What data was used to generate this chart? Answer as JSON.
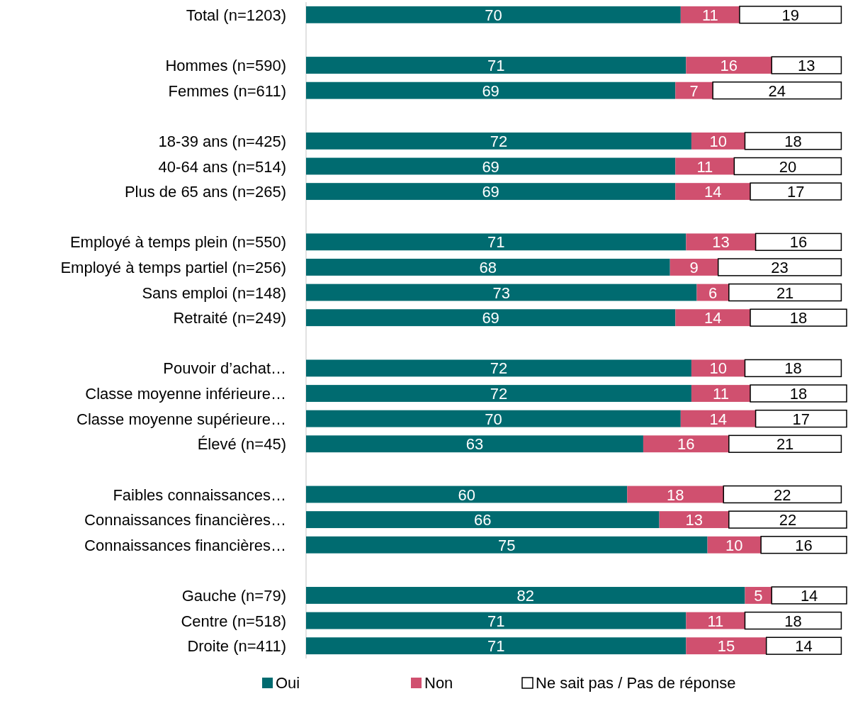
{
  "chart_data": {
    "type": "bar",
    "orientation": "horizontal",
    "stacked": true,
    "data_labels": true,
    "legend": "bottom",
    "xlim": [
      0,
      101
    ],
    "categories": [
      "Total (n=1203)",
      null,
      "Hommes (n=590)",
      "Femmes (n=611)",
      null,
      "18-39 ans (n=425)",
      "40-64 ans (n=514)",
      "Plus de 65 ans (n=265)",
      null,
      "Employé à temps plein (n=550)",
      "Employé à temps partiel (n=256)",
      "Sans emploi (n=148)",
      "Retraité (n=249)",
      null,
      "Pouvoir d’achat…",
      "Classe moyenne inférieure…",
      "Classe moyenne supérieure…",
      "Élevé (n=45)",
      null,
      "Faibles connaissances…",
      "Connaissances financières…",
      "Connaissances financières…",
      null,
      "Gauche (n=79)",
      "Centre (n=518)",
      "Droite (n=411)"
    ],
    "series": [
      {
        "name": "Oui",
        "color": "#006b70",
        "values": [
          70,
          null,
          71,
          69,
          null,
          72,
          69,
          69,
          null,
          71,
          68,
          73,
          69,
          null,
          72,
          72,
          70,
          63,
          null,
          60,
          66,
          75,
          null,
          82,
          71,
          71
        ]
      },
      {
        "name": "Non",
        "color": "#d0506f",
        "values": [
          11,
          null,
          16,
          7,
          null,
          10,
          11,
          14,
          null,
          13,
          9,
          6,
          14,
          null,
          10,
          11,
          14,
          16,
          null,
          18,
          13,
          10,
          null,
          5,
          11,
          15
        ]
      },
      {
        "name": "Ne sait pas / Pas de réponse",
        "color": "#ffffff",
        "values": [
          19,
          null,
          13,
          24,
          null,
          18,
          20,
          17,
          null,
          16,
          23,
          21,
          18,
          null,
          18,
          18,
          17,
          21,
          null,
          22,
          22,
          16,
          null,
          14,
          18,
          14
        ]
      }
    ]
  }
}
